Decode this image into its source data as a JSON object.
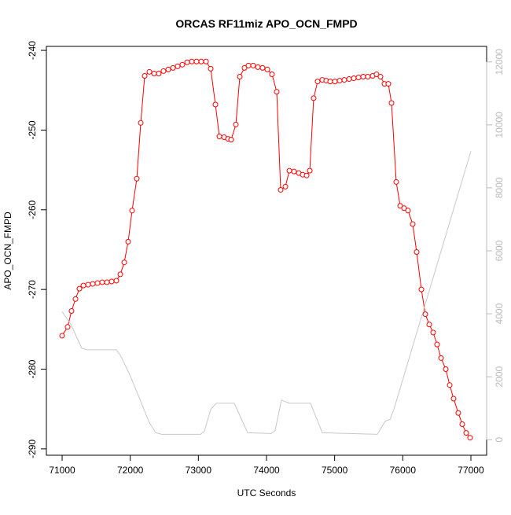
{
  "chart_data": {
    "type": "line",
    "title": "ORCAS RF11miz APO_OCN_FMPD",
    "xlabel": "UTC Seconds",
    "ylabel": "APO_OCN_FMPD",
    "xlim": [
      70769,
      77231
    ],
    "xticks": [
      71000,
      72000,
      73000,
      74000,
      75000,
      76000,
      77000
    ],
    "ylim": [
      -290.8,
      -239.5
    ],
    "yticks": [
      -290,
      -280,
      -270,
      -260,
      -250,
      -240
    ],
    "y2lim": [
      -493,
      12493
    ],
    "y2ticks": [
      0,
      2000,
      4000,
      6000,
      8000,
      10000,
      12000
    ],
    "series": [
      {
        "color": "#ff0000",
        "markers": true,
        "x": [
          71000,
          71081,
          71138,
          71196,
          71254,
          71312,
          71381,
          71450,
          71519,
          71588,
          71658,
          71727,
          71796,
          71854,
          71912,
          71969,
          72027,
          72096,
          72154,
          72212,
          72281,
          72350,
          72419,
          72488,
          72558,
          72627,
          72696,
          72765,
          72835,
          72904,
          72973,
          73042,
          73112,
          73181,
          73250,
          73308,
          73377,
          73435,
          73481,
          73550,
          73608,
          73677,
          73735,
          73804,
          73873,
          73942,
          74012,
          74081,
          74150,
          74208,
          74277,
          74335,
          74404,
          74473,
          74531,
          74589,
          74635,
          74692,
          74750,
          74819,
          74877,
          74935,
          75004,
          75073,
          75142,
          75212,
          75281,
          75350,
          75419,
          75488,
          75558,
          75615,
          75673,
          75731,
          75788,
          75835,
          75904,
          75962,
          76019,
          76077,
          76146,
          76204,
          76273,
          76331,
          76389,
          76446,
          76504,
          76562,
          76631,
          76689,
          76746,
          76815,
          76873,
          76931,
          76988
        ],
        "values": [
          -275.8,
          -274.7,
          -272.7,
          -271.2,
          -269.9,
          -269.5,
          -269.4,
          -269.3,
          -269.2,
          -269.1,
          -269.1,
          -269.0,
          -268.9,
          -268.1,
          -266.6,
          -264.0,
          -260.1,
          -256.1,
          -249.1,
          -243.2,
          -242.7,
          -242.9,
          -242.9,
          -242.6,
          -242.4,
          -242.2,
          -242.0,
          -241.8,
          -241.5,
          -241.4,
          -241.4,
          -241.4,
          -241.4,
          -242.3,
          -246.8,
          -250.8,
          -250.9,
          -251.1,
          -251.2,
          -249.3,
          -243.3,
          -242.2,
          -241.9,
          -241.9,
          -242.1,
          -242.2,
          -242.4,
          -243.0,
          -245.2,
          -257.5,
          -257.1,
          -255.1,
          -255.2,
          -255.4,
          -255.6,
          -255.7,
          -255.1,
          -246.0,
          -243.9,
          -243.7,
          -243.8,
          -243.9,
          -243.9,
          -243.8,
          -243.7,
          -243.6,
          -243.5,
          -243.4,
          -243.3,
          -243.3,
          -243.2,
          -243.0,
          -243.3,
          -244.2,
          -244.2,
          -246.6,
          -256.5,
          -259.5,
          -259.8,
          -260.1,
          -261.8,
          -265.3,
          -270.0,
          -273.1,
          -274.4,
          -275.4,
          -276.9,
          -278.6,
          -280.0,
          -282.0,
          -283.7,
          -285.5,
          -286.9,
          -288.0,
          -288.6
        ]
      },
      {
        "color": "#c8c8c8",
        "axis": "y2",
        "x": [
          71000,
          71127,
          71288,
          71358,
          71796,
          71854,
          71992,
          72281,
          72373,
          72465,
          73031,
          73088,
          73181,
          73262,
          73527,
          73619,
          73723,
          74069,
          74127,
          74219,
          74335,
          74646,
          74727,
          74819,
          75627,
          75742,
          75812,
          75869,
          77000
        ],
        "values": [
          4066,
          3671,
          2908,
          2858,
          2858,
          2686,
          2070,
          542,
          222,
          172,
          172,
          271,
          961,
          1158,
          1158,
          715,
          222,
          197,
          296,
          1257,
          1158,
          1158,
          715,
          222,
          172,
          591,
          641,
          961,
          9166
        ]
      }
    ]
  }
}
